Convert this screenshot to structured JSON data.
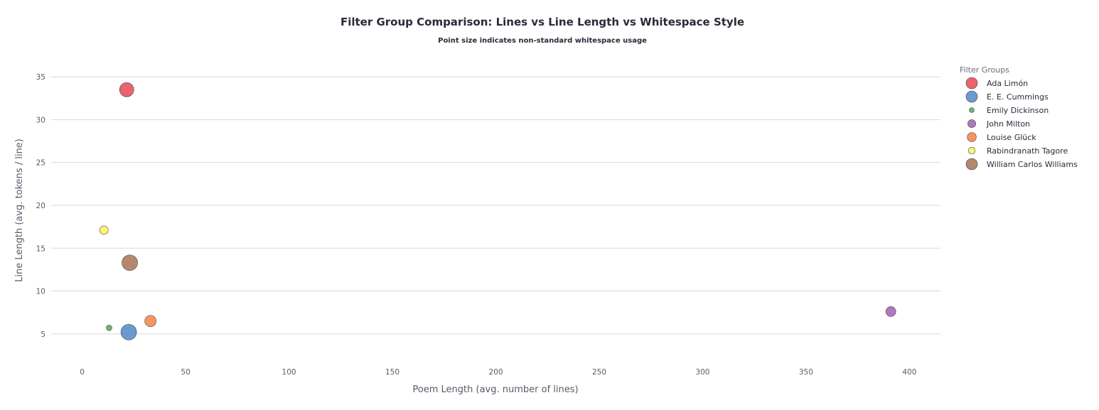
{
  "chart_data": {
    "type": "scatter",
    "title": "Filter Group Comparison: Lines vs Line Length vs Whitespace Style",
    "subtitle": "Point size indicates non-standard whitespace usage",
    "xlabel": "Poem Length (avg. number of lines)",
    "ylabel": "Line Length (avg. tokens / line)",
    "xlim": [
      -15,
      415
    ],
    "ylim": [
      2,
      37
    ],
    "xticks": [
      0,
      50,
      100,
      150,
      200,
      250,
      300,
      350,
      400
    ],
    "yticks": [
      5,
      10,
      15,
      20,
      25,
      30,
      35
    ],
    "grid": "horizontal",
    "legend_title": "Filter Groups",
    "legend_position": "right",
    "series": [
      {
        "name": "Ada Limón",
        "color": "#e8525f",
        "x": 21.5,
        "y": 33.5,
        "size": 10
      },
      {
        "name": "E. E. Cummings",
        "color": "#5b8fc9",
        "x": 22.5,
        "y": 5.2,
        "size": 11
      },
      {
        "name": "Emily Dickinson",
        "color": "#5dab6e",
        "x": 13,
        "y": 5.7,
        "size": 4
      },
      {
        "name": "John Milton",
        "color": "#ab67b9",
        "x": 391,
        "y": 7.6,
        "size": 7
      },
      {
        "name": "Louise Glück",
        "color": "#f58a4f",
        "x": 33,
        "y": 6.5,
        "size": 8
      },
      {
        "name": "Rabindranath Tagore",
        "color": "#fef36a",
        "x": 10.5,
        "y": 17.1,
        "size": 6
      },
      {
        "name": "William Carlos Williams",
        "color": "#ad7a5e",
        "x": 23,
        "y": 13.3,
        "size": 11
      }
    ]
  }
}
